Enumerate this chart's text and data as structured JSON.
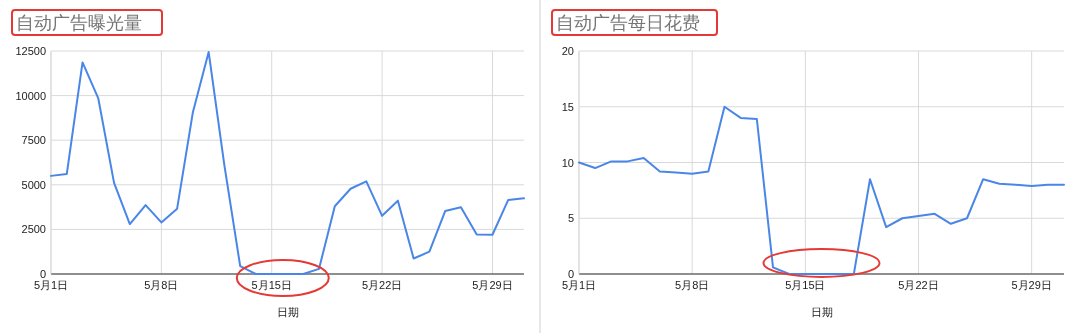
{
  "chart_data": [
    {
      "type": "line",
      "title": "自动广告曝光量",
      "xlabel": "日期",
      "x": [
        "--05-01",
        "--05-02",
        "--05-03",
        "--05-04",
        "--05-05",
        "--05-06",
        "--05-07",
        "--05-08",
        "--05-09",
        "--05-10",
        "--05-11",
        "--05-12",
        "--05-13",
        "--05-14",
        "--05-15",
        "--05-16",
        "--05-17",
        "--05-18",
        "--05-19",
        "--05-20",
        "--05-21",
        "--05-22",
        "--05-23",
        "--05-24",
        "--05-25",
        "--05-26",
        "--05-27",
        "--05-28",
        "--05-29",
        "--05-30",
        "--05-31"
      ],
      "series": [
        {
          "color": "#4a86e8",
          "values": [
            5500,
            5600,
            11860,
            9840,
            5110,
            2800,
            3860,
            2890,
            3660,
            9070,
            12440,
            6080,
            440,
            0,
            0,
            0,
            0,
            290,
            3800,
            4780,
            5190,
            3260,
            4110,
            870,
            1250,
            3530,
            3740,
            2220,
            2200,
            4150,
            4240
          ]
        }
      ],
      "xlim": [
        "--05-01",
        "--05-31"
      ],
      "xticks": [
        {
          "value": "--05-01",
          "label": "5月1日"
        },
        {
          "value": "--05-08",
          "label": "5月8日"
        },
        {
          "value": "--05-15",
          "label": "5月15日"
        },
        {
          "value": "--05-22",
          "label": "5月22日"
        },
        {
          "value": "--05-29",
          "label": "5月29日"
        }
      ],
      "ylim": [
        0,
        12500
      ],
      "yticks": [
        0,
        2500,
        5000,
        7500,
        10000,
        12500
      ],
      "grid": true
    },
    {
      "type": "line",
      "title": "自动广告每日花费",
      "xlabel": "日期",
      "x": [
        "--05-01",
        "--05-02",
        "--05-03",
        "--05-04",
        "--05-05",
        "--05-06",
        "--05-07",
        "--05-08",
        "--05-09",
        "--05-10",
        "--05-11",
        "--05-12",
        "--05-13",
        "--05-14",
        "--05-15",
        "--05-16",
        "--05-17",
        "--05-18",
        "--05-19",
        "--05-20",
        "--05-21",
        "--05-22",
        "--05-23",
        "--05-24",
        "--05-25",
        "--05-26",
        "--05-27",
        "--05-28",
        "--05-29",
        "--05-30",
        "--05-31"
      ],
      "series": [
        {
          "color": "#4a86e8",
          "values": [
            10.0,
            9.5,
            10.1,
            10.1,
            10.4,
            9.2,
            9.1,
            9.0,
            9.2,
            15.0,
            14.0,
            13.9,
            0.6,
            0,
            0,
            0,
            0,
            0,
            8.5,
            4.2,
            5.0,
            5.2,
            5.4,
            4.5,
            5.0,
            8.5,
            8.1,
            8.0,
            7.9,
            8.0,
            8.0
          ]
        }
      ],
      "xlim": [
        "--05-01",
        "--05-31"
      ],
      "xticks": [
        {
          "value": "--05-01",
          "label": "5月1日"
        },
        {
          "value": "--05-08",
          "label": "5月8日"
        },
        {
          "value": "--05-15",
          "label": "5月15日"
        },
        {
          "value": "--05-22",
          "label": "5月22日"
        },
        {
          "value": "--05-29",
          "label": "5月29日"
        }
      ],
      "ylim": [
        0,
        20
      ],
      "yticks": [
        0,
        5,
        10,
        15,
        20
      ],
      "grid": true
    }
  ]
}
